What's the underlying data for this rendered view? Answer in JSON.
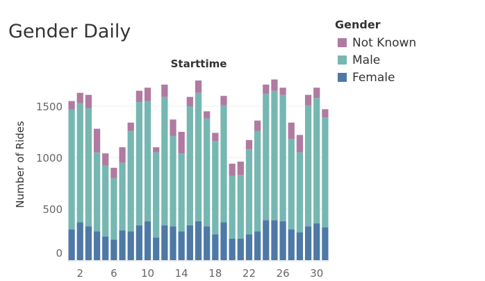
{
  "title": "Gender Daily",
  "legend": {
    "title": "Gender",
    "items": [
      {
        "label": "Not Known",
        "color": "#b07aa1"
      },
      {
        "label": "Male",
        "color": "#76b7b2"
      },
      {
        "label": "Female",
        "color": "#4e79a7"
      }
    ]
  },
  "chart_data": {
    "type": "bar",
    "stacked": true,
    "title": "Starttime",
    "ylabel": "Number of Rides",
    "xlabel": "",
    "ylim": [
      0,
      1800
    ],
    "yticks": [
      0,
      500,
      1000,
      1500
    ],
    "xticks": [
      2,
      6,
      10,
      14,
      18,
      22,
      26,
      30
    ],
    "grid": true,
    "categories": [
      1,
      2,
      3,
      4,
      5,
      6,
      7,
      8,
      9,
      10,
      11,
      12,
      13,
      14,
      15,
      16,
      17,
      18,
      19,
      20,
      21,
      22,
      23,
      24,
      25,
      26,
      27,
      28,
      29,
      30,
      31
    ],
    "series": [
      {
        "name": "Female",
        "color": "#4e79a7",
        "values": [
          300,
          370,
          330,
          280,
          230,
          200,
          290,
          280,
          340,
          380,
          220,
          340,
          330,
          280,
          340,
          380,
          330,
          250,
          370,
          210,
          210,
          250,
          280,
          390,
          390,
          380,
          300,
          270,
          330,
          360,
          320
        ]
      },
      {
        "name": "Male",
        "color": "#76b7b2",
        "values": [
          1170,
          1160,
          1150,
          770,
          690,
          600,
          660,
          980,
          1200,
          1170,
          830,
          1250,
          880,
          760,
          1160,
          1250,
          1050,
          910,
          1140,
          610,
          620,
          830,
          980,
          1230,
          1260,
          1230,
          880,
          780,
          1180,
          1220,
          1070
        ]
      },
      {
        "name": "Not Known",
        "color": "#b07aa1",
        "values": [
          80,
          100,
          130,
          230,
          120,
          100,
          150,
          80,
          110,
          130,
          50,
          120,
          160,
          210,
          90,
          120,
          70,
          80,
          90,
          120,
          130,
          90,
          100,
          90,
          110,
          70,
          160,
          170,
          100,
          100,
          80
        ]
      }
    ]
  }
}
